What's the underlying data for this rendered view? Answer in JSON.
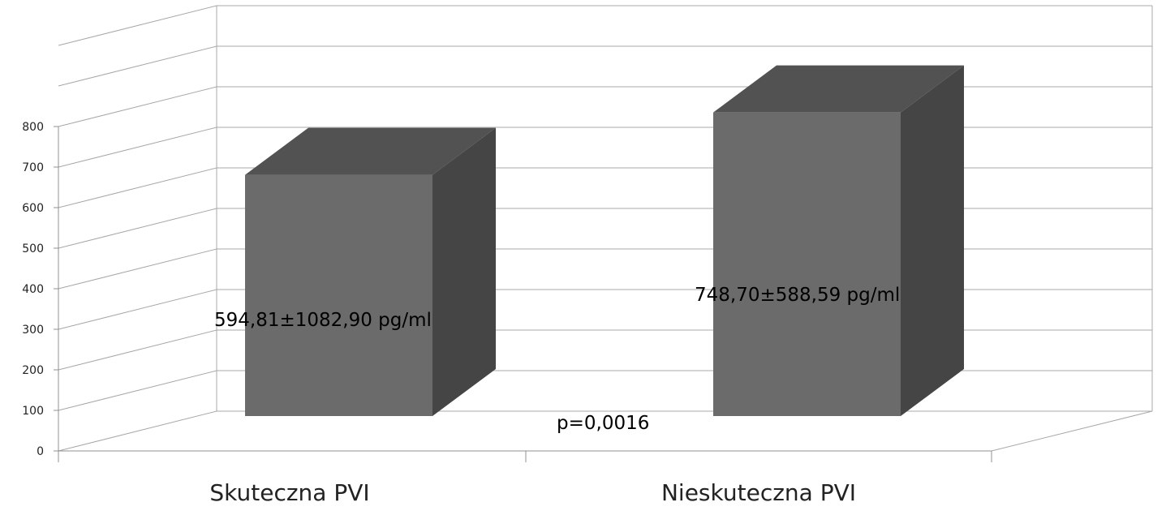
{
  "chart_data": {
    "type": "bar",
    "categories": [
      "Skuteczna PVI",
      "Nieskuteczna PVI"
    ],
    "values": [
      594.81,
      748.7
    ],
    "data_labels": [
      "594,81±1082,90 pg/ml",
      "748,70±588,59 pg/ml"
    ],
    "annotation": "p=0,0016",
    "ylim": [
      0,
      800
    ],
    "yticks": [
      "0",
      "100",
      "200",
      "300",
      "400",
      "500",
      "600",
      "700",
      "800"
    ],
    "grid": true,
    "legend": "none",
    "style": "3d-column",
    "colors": {
      "bar_front": "#6b6b6b",
      "bar_top": "#525252",
      "bar_side": "#454545",
      "grid": "#a8a8a8"
    }
  }
}
